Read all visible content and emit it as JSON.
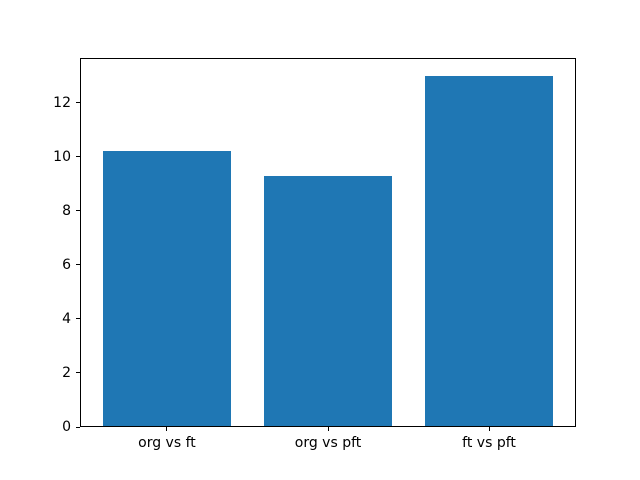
{
  "chart_data": {
    "type": "bar",
    "categories": [
      "org vs ft",
      "org vs pft",
      "ft vs pft"
    ],
    "values": [
      10.2,
      9.3,
      13.0
    ],
    "title": "",
    "xlabel": "",
    "ylabel": "",
    "ylim": [
      0,
      13.65
    ],
    "yticks": [
      0,
      2,
      4,
      6,
      8,
      10,
      12
    ],
    "bar_color": "#1f77b4",
    "bar_width_units": 0.8,
    "grid": false,
    "legend_position": "none"
  }
}
